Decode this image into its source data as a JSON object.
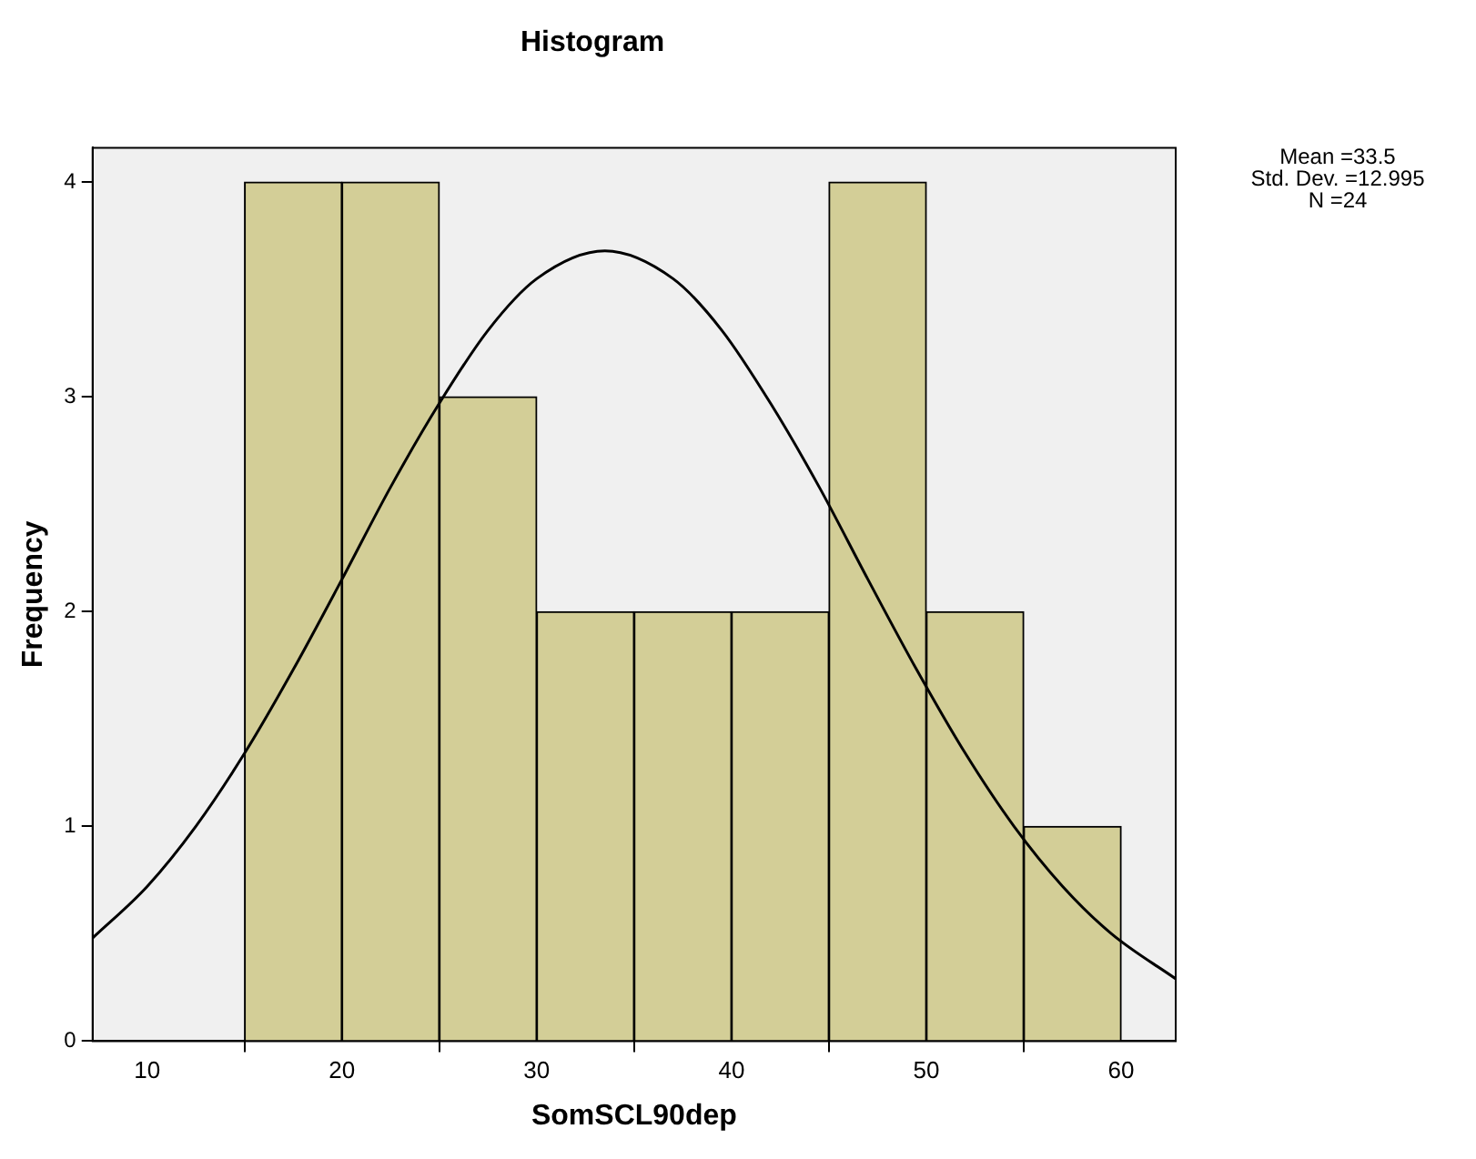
{
  "chart_data": {
    "type": "histogram",
    "title": "Histogram",
    "xlabel": "SomSCL90dep",
    "ylabel": "Frequency",
    "bins": [
      15,
      20,
      25,
      30,
      35,
      40,
      45,
      50,
      55,
      60
    ],
    "series": [
      {
        "color": "#d3ce97",
        "values": [
          4,
          4,
          3,
          2,
          2,
          2,
          4,
          2,
          1
        ]
      },
      {
        "type": "line",
        "color": "#000000",
        "marker": "none",
        "x": [
          7.2,
          10,
          12.5,
          15,
          17.5,
          20,
          22.5,
          25,
          27.5,
          30,
          33.5,
          37,
          39.5,
          42,
          44.5,
          47,
          49.5,
          52,
          54.5,
          57,
          59.5,
          62.8
        ],
        "values": [
          0.48,
          0.72,
          1.0,
          1.34,
          1.73,
          2.15,
          2.58,
          2.97,
          3.31,
          3.55,
          3.68,
          3.55,
          3.31,
          2.97,
          2.58,
          2.15,
          1.73,
          1.34,
          1.0,
          0.72,
          0.5,
          0.29
        ]
      }
    ],
    "xlim": [
      7.2,
      62.8
    ],
    "xticks": [
      10,
      20,
      30,
      40,
      50,
      60
    ],
    "ylim": [
      0,
      4.16
    ],
    "yticks": [
      0,
      1,
      2,
      3,
      4
    ],
    "grid": false,
    "legend": false,
    "annotations": [
      "Mean =33.5",
      "Std. Dev. =12.995",
      "N =24"
    ]
  }
}
